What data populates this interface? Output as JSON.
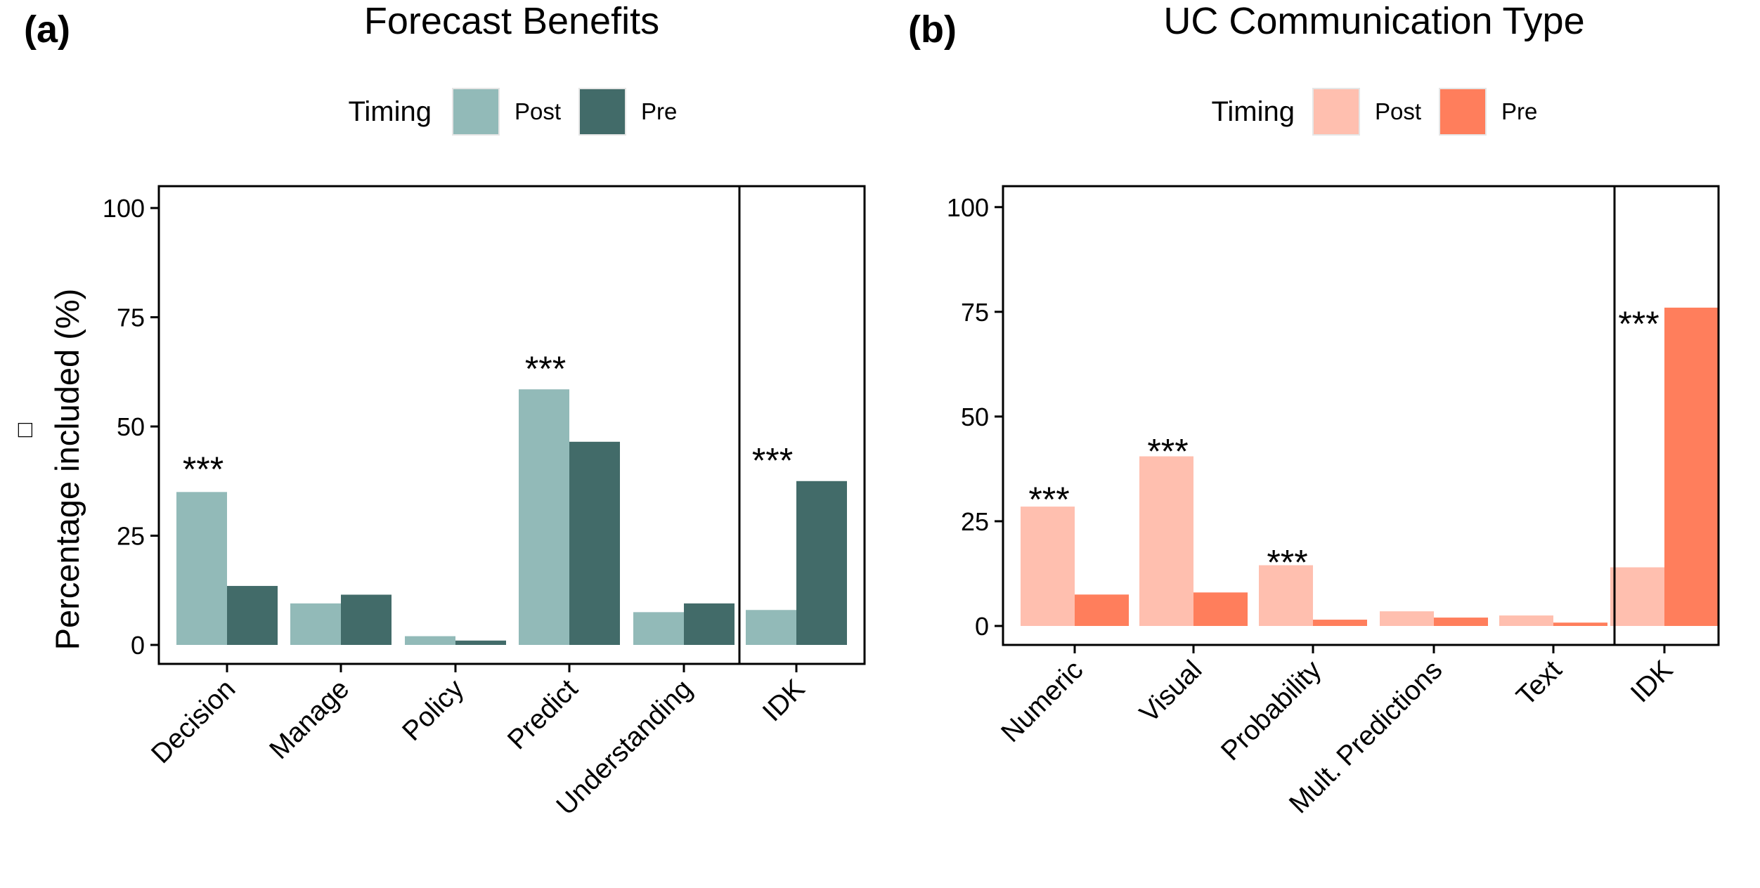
{
  "chart_data": [
    {
      "type": "bar",
      "panel_label": "(a)",
      "title": "Forecast Benefits",
      "ylabel": "Percentage included (%)",
      "ylabel_marker": "□",
      "xlabel": "",
      "ylim": [
        0,
        105
      ],
      "yticks": [
        0,
        25,
        50,
        75,
        100
      ],
      "legend": {
        "title": "Timing",
        "position": "top"
      },
      "categories": [
        "Decision",
        "Manage",
        "Policy",
        "Predict",
        "Understanding",
        "IDK"
      ],
      "facet_split_after": 5,
      "series": [
        {
          "name": "Post",
          "color": "#92BAB8",
          "values": [
            35,
            9.5,
            2,
            58.5,
            7.5,
            8
          ]
        },
        {
          "name": "Pre",
          "color": "#426B69",
          "values": [
            13.5,
            11.5,
            1,
            46.5,
            9.5,
            37.5
          ]
        }
      ],
      "annotations": [
        {
          "category": "Decision",
          "text": "***",
          "y": 41
        },
        {
          "category": "Predict",
          "text": "***",
          "y": 64
        },
        {
          "category": "IDK",
          "text": "***",
          "y": 43
        }
      ]
    },
    {
      "type": "bar",
      "panel_label": "(b)",
      "title": "UC Communication Type",
      "xlabel": "",
      "ylabel": "",
      "ylim": [
        0,
        105
      ],
      "yticks": [
        0,
        25,
        50,
        75,
        100
      ],
      "legend": {
        "title": "Timing",
        "position": "top"
      },
      "categories": [
        "Numeric",
        "Visual",
        "Probability",
        "Mult. Predictions",
        "Text",
        "IDK"
      ],
      "facet_split_after": 5,
      "series": [
        {
          "name": "Post",
          "color": "#FFBFAF",
          "values": [
            28.5,
            40.5,
            14.5,
            3.5,
            2.5,
            14
          ]
        },
        {
          "name": "Pre",
          "color": "#FF7E5C",
          "values": [
            7.5,
            8,
            1.5,
            2,
            0.8,
            76
          ]
        }
      ],
      "annotations": [
        {
          "category": "Numeric",
          "text": "***",
          "y": 31
        },
        {
          "category": "Visual",
          "text": "***",
          "y": 42.5
        },
        {
          "category": "Probability",
          "text": "***",
          "y": 16
        },
        {
          "category": "IDK",
          "text": "***",
          "y": 73
        }
      ]
    }
  ]
}
